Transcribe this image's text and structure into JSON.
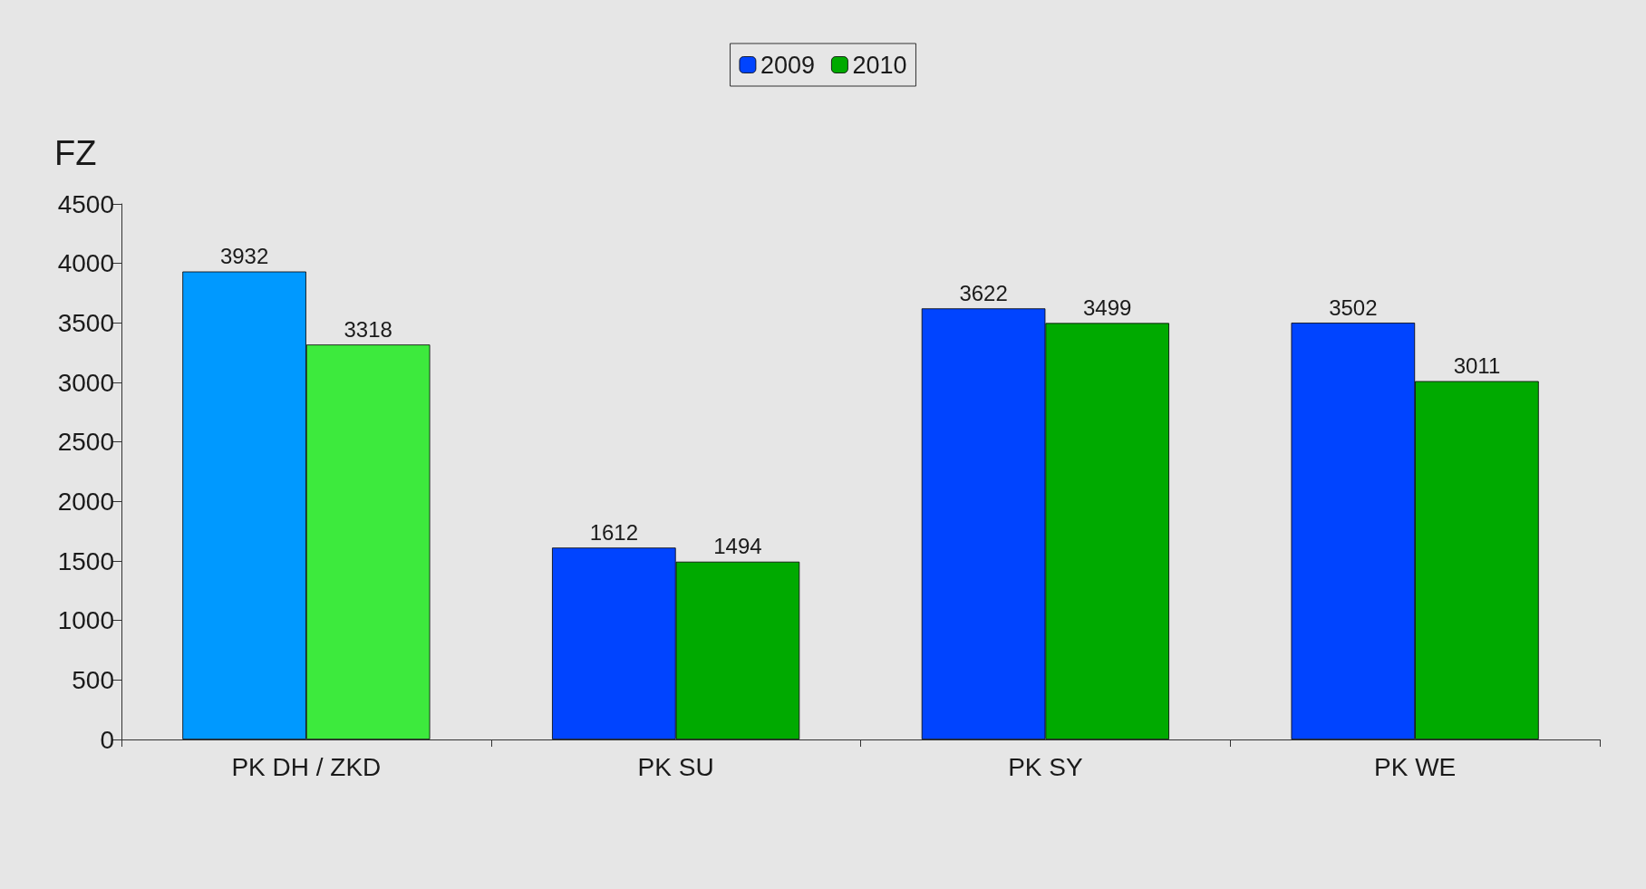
{
  "chart_data": {
    "type": "bar",
    "ylabel": "FZ",
    "categories": [
      "PK DH / ZKD",
      "PK SU",
      "PK SY",
      "PK WE"
    ],
    "series": [
      {
        "name": "2009",
        "color": "#0044ff",
        "colors": [
          "#0099ff",
          "#0044ff",
          "#0044ff",
          "#0044ff"
        ],
        "values": [
          3932,
          1612,
          3622,
          3502
        ]
      },
      {
        "name": "2010",
        "color": "#00aa00",
        "colors": [
          "#3dea3d",
          "#00aa00",
          "#00aa00",
          "#00aa00"
        ],
        "values": [
          3318,
          1494,
          3499,
          3011
        ]
      }
    ],
    "ylim": [
      0,
      4500
    ],
    "yticks": [
      0,
      500,
      1000,
      1500,
      2000,
      2500,
      3000,
      3500,
      4000,
      4500
    ],
    "data_labels": true,
    "grid": false,
    "legend": "top"
  }
}
